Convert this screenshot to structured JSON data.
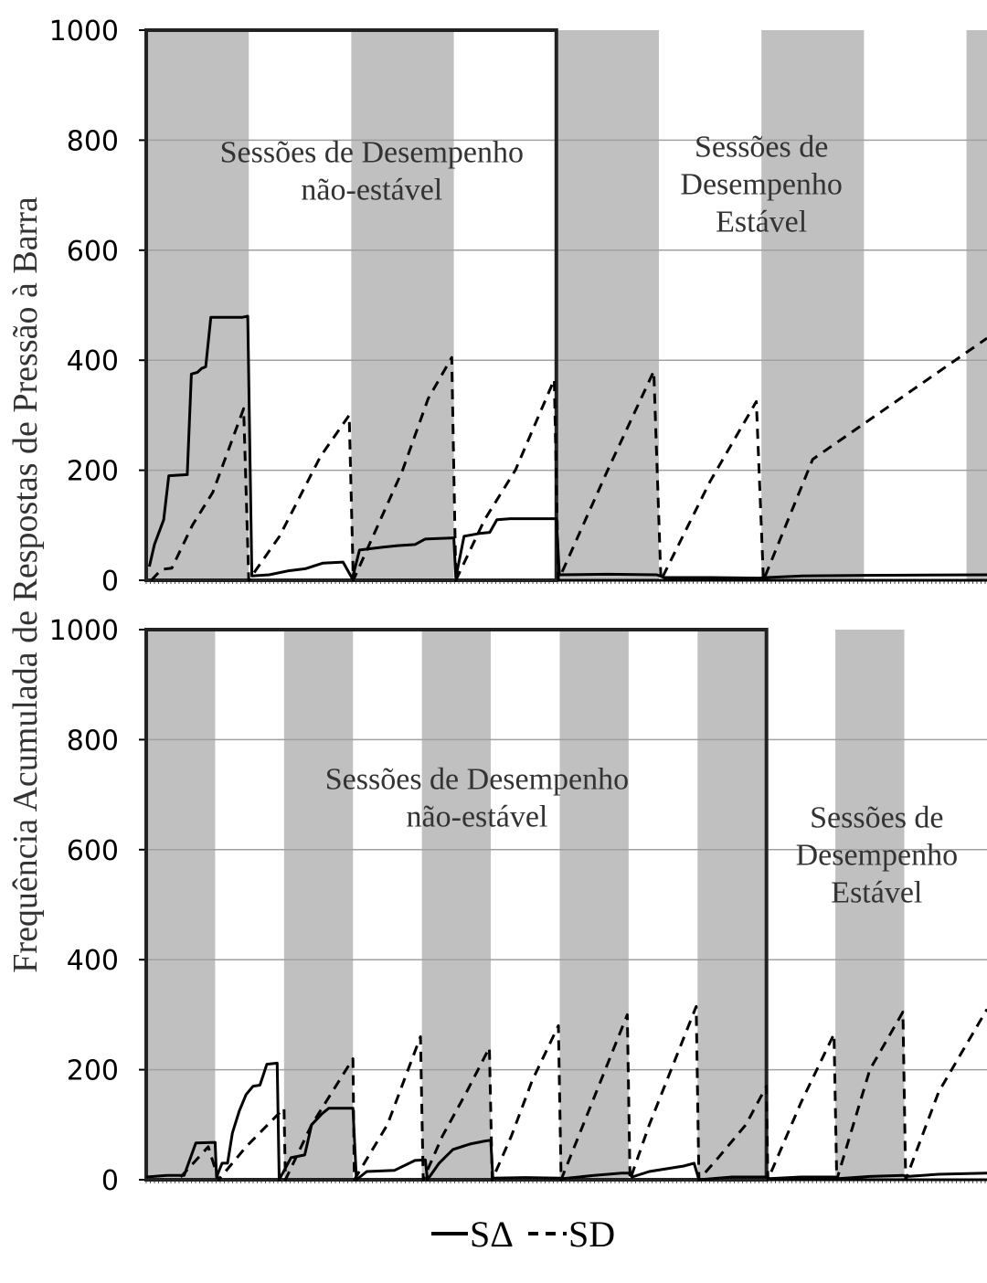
{
  "ylabel": "Frequência Acumulada de Respostas de Pressão à Barra",
  "legend": {
    "solid_label": "SΔ",
    "dashed_label": "SD",
    "placement": "bottom-center"
  },
  "colors": {
    "shade": "#c0c0c0",
    "grid": "#a0a0a0",
    "line": "#000000"
  },
  "chart_data": [
    {
      "type": "line",
      "yticks": [
        "0",
        "200",
        "400",
        "600",
        "800",
        "1000"
      ],
      "ylim": [
        0,
        1000
      ],
      "xlim": [
        0,
        8.2
      ],
      "grid": true,
      "shaded_blocks": [
        [
          0,
          1
        ],
        [
          2,
          3
        ],
        [
          4,
          5
        ],
        [
          6,
          7
        ],
        [
          8,
          8.2
        ]
      ],
      "unstable_end": 4,
      "annotations": [
        {
          "lines": [
            "Sessões de Desempenho",
            "não-estável"
          ],
          "x": 2.2,
          "y": 760
        },
        {
          "lines": [
            "Sessões de",
            "Desempenho",
            "Estável"
          ],
          "x": 6.0,
          "y": 770
        }
      ],
      "series": [
        {
          "name": "SΔ",
          "style": "solid",
          "points": [
            [
              0.03,
              25
            ],
            [
              0.08,
              65
            ],
            [
              0.13,
              90
            ],
            [
              0.17,
              110
            ],
            [
              0.22,
              190
            ],
            [
              0.4,
              192
            ],
            [
              0.44,
              375
            ],
            [
              0.5,
              378
            ],
            [
              0.54,
              385
            ],
            [
              0.58,
              388
            ],
            [
              0.63,
              478
            ],
            [
              0.94,
              478
            ],
            [
              0.99,
              480
            ],
            [
              1.03,
              8
            ],
            [
              1.2,
              10
            ],
            [
              1.38,
              17
            ],
            [
              1.55,
              21
            ],
            [
              1.72,
              31
            ],
            [
              1.92,
              33
            ],
            [
              2.01,
              3
            ],
            [
              2.08,
              55
            ],
            [
              2.3,
              60
            ],
            [
              2.45,
              63
            ],
            [
              2.62,
              65
            ],
            [
              2.72,
              75
            ],
            [
              3.0,
              77
            ],
            [
              3.02,
              5
            ],
            [
              3.1,
              80
            ],
            [
              3.25,
              85
            ],
            [
              3.35,
              87
            ],
            [
              3.42,
              110
            ],
            [
              3.55,
              112
            ],
            [
              4.0,
              112
            ],
            [
              4.03,
              10
            ],
            [
              4.5,
              11
            ],
            [
              4.98,
              10
            ],
            [
              5.05,
              5
            ],
            [
              5.5,
              5
            ],
            [
              5.98,
              4
            ],
            [
              6.05,
              5
            ],
            [
              6.4,
              8
            ],
            [
              7.0,
              9
            ],
            [
              8.2,
              10
            ]
          ]
        },
        {
          "name": "SD",
          "style": "dashed",
          "points": [
            [
              0.05,
              0
            ],
            [
              0.15,
              20
            ],
            [
              0.25,
              22
            ],
            [
              0.45,
              100
            ],
            [
              0.65,
              160
            ],
            [
              0.95,
              312
            ],
            [
              1.0,
              0
            ],
            [
              1.3,
              80
            ],
            [
              1.7,
              225
            ],
            [
              1.98,
              300
            ],
            [
              2.02,
              0
            ],
            [
              2.5,
              200
            ],
            [
              2.75,
              330
            ],
            [
              2.98,
              405
            ],
            [
              3.02,
              0
            ],
            [
              3.3,
              110
            ],
            [
              3.6,
              200
            ],
            [
              3.98,
              365
            ],
            [
              4.02,
              0
            ],
            [
              4.5,
              200
            ],
            [
              4.95,
              380
            ],
            [
              5.02,
              0
            ],
            [
              5.5,
              180
            ],
            [
              5.95,
              325
            ],
            [
              6.02,
              0
            ],
            [
              6.5,
              220
            ],
            [
              8.2,
              440
            ]
          ]
        }
      ]
    },
    {
      "type": "line",
      "yticks": [
        "0",
        "200",
        "400",
        "600",
        "800",
        "1000"
      ],
      "ylim": [
        0,
        1000
      ],
      "xlim": [
        0,
        12.2
      ],
      "grid": true,
      "shaded_blocks": [
        [
          0,
          1
        ],
        [
          2,
          3
        ],
        [
          4,
          5
        ],
        [
          6,
          7
        ],
        [
          8,
          9
        ],
        [
          10,
          11
        ]
      ],
      "unstable_end": 9,
      "annotations": [
        {
          "lines": [
            "Sessões de Desempenho",
            "não-estável"
          ],
          "x": 4.8,
          "y": 710
        },
        {
          "lines": [
            "Sessões de",
            "Desempenho",
            "Estável"
          ],
          "x": 10.6,
          "y": 640
        }
      ],
      "series": [
        {
          "name": "SΔ",
          "style": "solid",
          "points": [
            [
              0.0,
              5
            ],
            [
              0.3,
              8
            ],
            [
              0.55,
              8
            ],
            [
              0.72,
              67
            ],
            [
              1.0,
              68
            ],
            [
              1.02,
              5
            ],
            [
              1.1,
              30
            ],
            [
              1.18,
              30
            ],
            [
              1.25,
              85
            ],
            [
              1.35,
              125
            ],
            [
              1.45,
              155
            ],
            [
              1.55,
              170
            ],
            [
              1.65,
              172
            ],
            [
              1.75,
              210
            ],
            [
              1.9,
              212
            ],
            [
              1.93,
              0
            ],
            [
              2.1,
              40
            ],
            [
              2.3,
              45
            ],
            [
              2.4,
              100
            ],
            [
              2.55,
              120
            ],
            [
              2.65,
              130
            ],
            [
              3.0,
              130
            ],
            [
              3.05,
              0
            ],
            [
              3.2,
              15
            ],
            [
              3.6,
              17
            ],
            [
              3.9,
              35
            ],
            [
              4.05,
              36
            ],
            [
              4.08,
              0
            ],
            [
              4.25,
              30
            ],
            [
              4.45,
              55
            ],
            [
              4.7,
              65
            ],
            [
              4.9,
              70
            ],
            [
              5.0,
              72
            ],
            [
              5.03,
              3
            ],
            [
              5.5,
              4
            ],
            [
              6.0,
              3
            ],
            [
              6.05,
              2
            ],
            [
              6.5,
              8
            ],
            [
              6.9,
              12
            ],
            [
              7.0,
              12
            ],
            [
              7.05,
              5
            ],
            [
              7.3,
              15
            ],
            [
              7.8,
              25
            ],
            [
              7.95,
              30
            ],
            [
              8.02,
              0
            ],
            [
              8.5,
              5
            ],
            [
              9.0,
              5
            ],
            [
              9.05,
              2
            ],
            [
              9.5,
              5
            ],
            [
              10.0,
              5
            ],
            [
              10.05,
              2
            ],
            [
              10.5,
              6
            ],
            [
              10.98,
              8
            ],
            [
              11.05,
              6
            ],
            [
              11.5,
              10
            ],
            [
              12.2,
              12
            ]
          ]
        },
        {
          "name": "SD",
          "style": "dashed",
          "points": [
            [
              0.5,
              5
            ],
            [
              0.9,
              60
            ],
            [
              1.05,
              0
            ],
            [
              1.45,
              60
            ],
            [
              2.0,
              130
            ],
            [
              2.02,
              0
            ],
            [
              2.4,
              100
            ],
            [
              3.0,
              220
            ],
            [
              3.02,
              0
            ],
            [
              3.5,
              100
            ],
            [
              3.98,
              260
            ],
            [
              4.02,
              0
            ],
            [
              4.3,
              80
            ],
            [
              4.65,
              160
            ],
            [
              4.98,
              240
            ],
            [
              5.02,
              0
            ],
            [
              5.3,
              80
            ],
            [
              5.6,
              180
            ],
            [
              5.98,
              280
            ],
            [
              6.02,
              0
            ],
            [
              6.5,
              150
            ],
            [
              6.98,
              300
            ],
            [
              7.02,
              0
            ],
            [
              7.3,
              100
            ],
            [
              7.98,
              315
            ],
            [
              8.02,
              0
            ],
            [
              8.3,
              40
            ],
            [
              8.7,
              100
            ],
            [
              9.0,
              170
            ],
            [
              9.02,
              0
            ],
            [
              9.5,
              140
            ],
            [
              9.98,
              265
            ],
            [
              10.02,
              0
            ],
            [
              10.5,
              200
            ],
            [
              10.98,
              305
            ],
            [
              11.02,
              0
            ],
            [
              11.5,
              160
            ],
            [
              12.2,
              310
            ]
          ]
        }
      ]
    }
  ]
}
